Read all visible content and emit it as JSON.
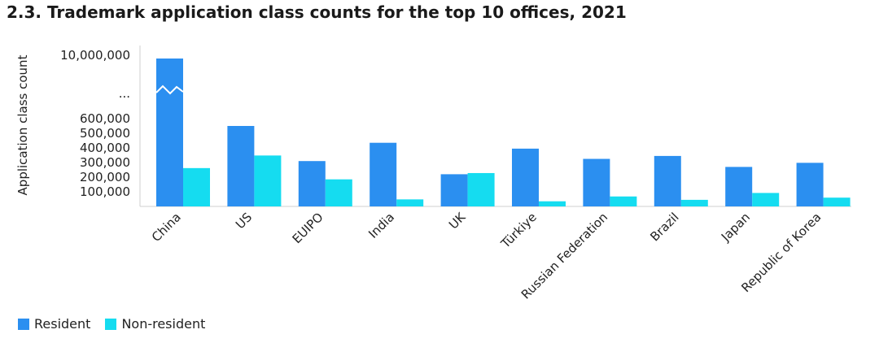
{
  "title": "2.3. Trademark application class counts for the top 10 offices, 2021",
  "chart_data": {
    "type": "bar",
    "title": "2.3. Trademark application class counts for the top 10 offices, 2021",
    "xlabel": "",
    "ylabel": "Application class count",
    "categories": [
      "China",
      "US",
      "EUIPO",
      "India",
      "UK",
      "Türkiye",
      "Russian Federation",
      "Brazil",
      "Japan",
      "Republic of Korea"
    ],
    "series": [
      {
        "name": "Resident",
        "color": "#2b8ff0",
        "values": [
          9300000,
          550000,
          310000,
          435000,
          220000,
          395000,
          325000,
          345000,
          270000,
          298000
        ]
      },
      {
        "name": "Non-resident",
        "color": "#15dcf0",
        "values": [
          262000,
          348000,
          185000,
          48000,
          228000,
          35000,
          68000,
          45000,
          92000,
          60000
        ]
      }
    ],
    "yticks": [
      "100,000",
      "200,000",
      "300,000",
      "400,000",
      "500,000",
      "600,000",
      "...",
      "10,000,000"
    ],
    "ylim": [
      0,
      10000000
    ],
    "axis_break": true,
    "grid": false,
    "legend_position": "bottom-left"
  }
}
